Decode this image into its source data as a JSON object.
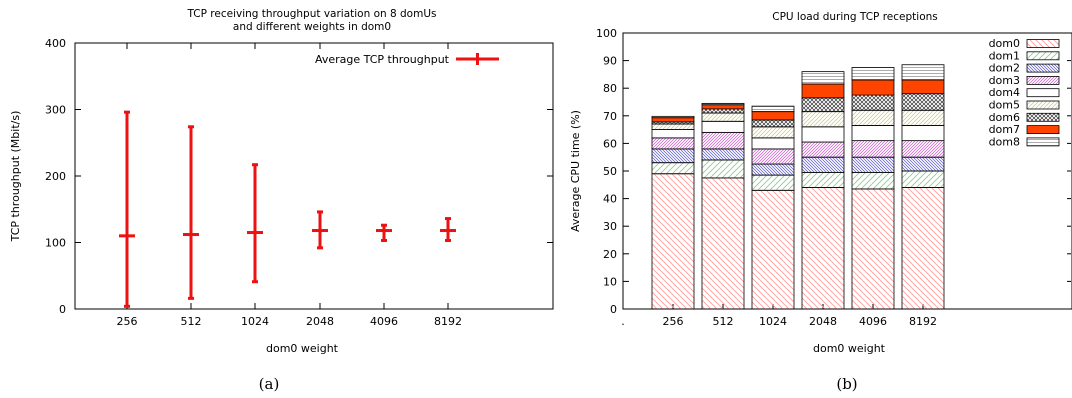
{
  "captions": [
    "(a)",
    "(b)"
  ],
  "chart_data": [
    {
      "type": "errorbar",
      "title_lines": [
        "TCP receiving throughput variation on 8 domUs",
        "and different weights in dom0"
      ],
      "xlabel": "dom0 weight",
      "ylabel": "TCP throughput (Mbit/s)",
      "ylim": [
        0,
        400
      ],
      "yticks": [
        0,
        100,
        200,
        300,
        400
      ],
      "categories": [
        "256",
        "512",
        "1024",
        "2048",
        "4096",
        "8192"
      ],
      "series": [
        {
          "name": "Average TCP throughput",
          "color": "#ee1111",
          "mean": [
            110,
            112,
            115,
            118,
            118,
            118
          ],
          "low": [
            4,
            16,
            41,
            92,
            103,
            103
          ],
          "high": [
            296,
            274,
            217,
            146,
            126,
            136
          ]
        }
      ],
      "legend_position": "top-right"
    },
    {
      "type": "stacked-bar",
      "title": "CPU load during TCP receptions",
      "xlabel": "dom0 weight",
      "ylabel": "Average CPU time (%)",
      "ylim": [
        0,
        100
      ],
      "yticks": [
        0,
        10,
        20,
        30,
        40,
        50,
        60,
        70,
        80,
        90,
        100
      ],
      "first_tick_label": ".",
      "categories": [
        "256",
        "512",
        "1024",
        "2048",
        "4096",
        "8192"
      ],
      "series": [
        {
          "name": "dom0",
          "pattern": "diag-back",
          "color": "#ff9999",
          "values": [
            49,
            47.5,
            43,
            44,
            43.5,
            44
          ]
        },
        {
          "name": "dom1",
          "pattern": "diag-fwd",
          "color": "#99dd99",
          "values": [
            4,
            6.5,
            5.5,
            5.5,
            6,
            6
          ]
        },
        {
          "name": "dom2",
          "pattern": "diag-back-dense",
          "color": "#5555cc",
          "values": [
            5,
            4,
            4,
            5.5,
            5.5,
            5
          ]
        },
        {
          "name": "dom3",
          "pattern": "diag-fwd-dense",
          "color": "#cc55cc",
          "values": [
            4,
            6,
            5.5,
            5.5,
            6,
            6
          ]
        },
        {
          "name": "dom4",
          "pattern": "empty",
          "color": "#ffffff",
          "values": [
            3,
            4,
            4,
            5.5,
            5.5,
            5.5
          ]
        },
        {
          "name": "dom5",
          "pattern": "diag-fwd-light",
          "color": "#d8d890",
          "values": [
            2,
            3,
            4,
            5.5,
            5.5,
            5.5
          ]
        },
        {
          "name": "dom6",
          "pattern": "cross",
          "color": "#555555",
          "values": [
            0.8,
            1.5,
            2.5,
            5,
            5.5,
            6
          ]
        },
        {
          "name": "dom7",
          "pattern": "solid",
          "color": "#ff4400",
          "values": [
            1.5,
            1.5,
            3,
            5,
            5.5,
            5
          ]
        },
        {
          "name": "dom8",
          "pattern": "horiz",
          "color": "#999999",
          "values": [
            0.5,
            0.5,
            2,
            4.5,
            4.5,
            5.5
          ]
        }
      ],
      "legend_position": "top-right"
    }
  ]
}
